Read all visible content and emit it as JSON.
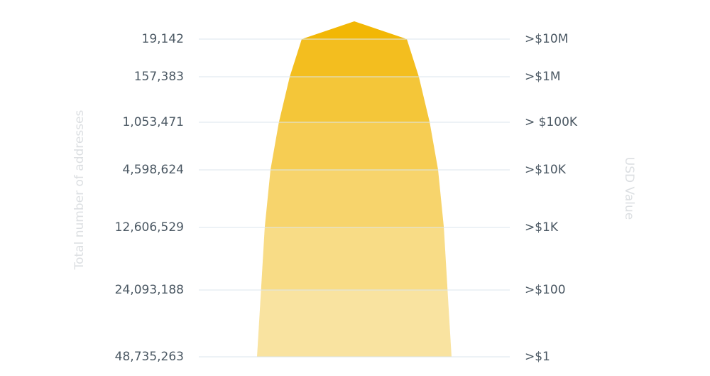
{
  "chart_data": {
    "type": "funnel",
    "y_axis_title": "Total number of addresses",
    "y2_axis_title": "USD Value",
    "categories": [
      ">$10M",
      ">$1M",
      "> $100K",
      ">$10K",
      ">$1K",
      ">$100",
      ">$1"
    ],
    "values": [
      19142,
      157383,
      1053471,
      4598624,
      12606529,
      24093188,
      48735263
    ],
    "value_labels": [
      "19,142",
      "157,383",
      "1,053,471",
      "4,598,624",
      "12,606,529",
      "24,093,188",
      "48,735,263"
    ],
    "colors": [
      "#f2b705",
      "#f9e3a0"
    ],
    "log_scale": true,
    "grid": true
  }
}
